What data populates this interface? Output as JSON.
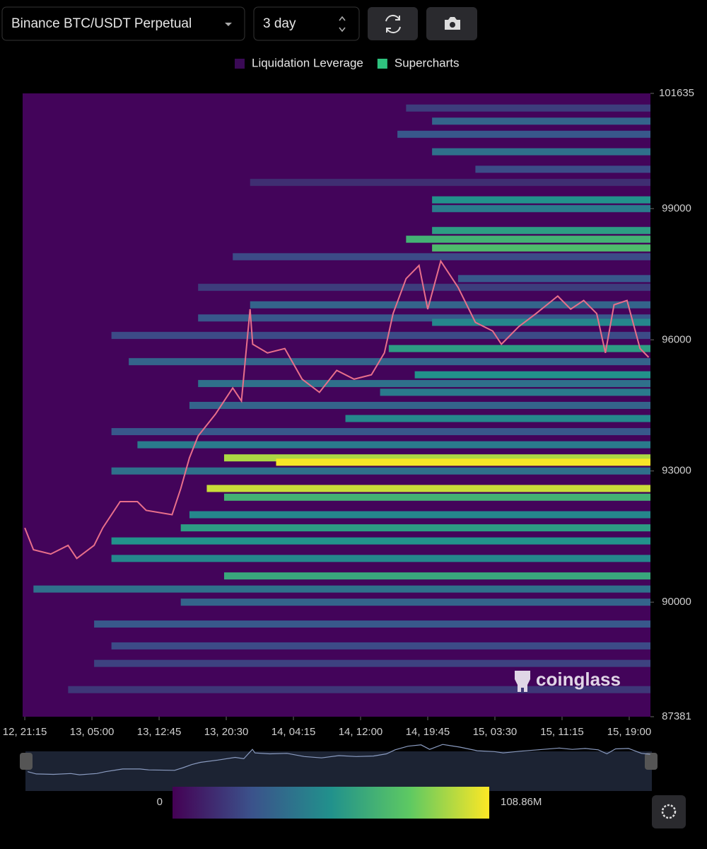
{
  "toolbar": {
    "symbol": "Binance BTC/USDT Perpetual",
    "range": "3 day"
  },
  "watermark": "coinglass",
  "chart_data": {
    "type": "heatmap",
    "series": [
      {
        "name": "Liquidation Leverage",
        "color": "#3a0a55"
      },
      {
        "name": "Supercharts",
        "color": "#2ec27e"
      }
    ],
    "background": "#43045a",
    "line_color": "#e86f8a",
    "ylim": [
      87381,
      101635
    ],
    "yticks": [
      87381,
      90000,
      93000,
      96000,
      99000,
      101635
    ],
    "xlim": [
      -0.25,
      72.2
    ],
    "xticks": [
      {
        "value": 0,
        "label": "12, 21:15"
      },
      {
        "value": 7.75,
        "label": "13, 05:00"
      },
      {
        "value": 15.5,
        "label": "13, 12:45"
      },
      {
        "value": 23.25,
        "label": "13, 20:30"
      },
      {
        "value": 31,
        "label": "14, 04:15"
      },
      {
        "value": 38.75,
        "label": "14, 12:00"
      },
      {
        "value": 46.5,
        "label": "14, 19:45"
      },
      {
        "value": 54.25,
        "label": "15, 03:30"
      },
      {
        "value": 62,
        "label": "15, 11:15"
      },
      {
        "value": 69.75,
        "label": "15, 19:00"
      }
    ],
    "price": {
      "x": [
        0,
        1,
        3,
        5,
        6,
        8,
        9,
        11,
        13,
        14,
        17,
        18,
        19,
        20,
        22,
        24,
        25,
        26,
        26.3,
        28,
        30,
        32,
        34,
        36,
        38,
        40,
        41.5,
        42.5,
        44,
        45.5,
        46.5,
        48,
        50,
        52,
        54,
        55,
        57,
        59,
        61.5,
        63,
        64.5,
        66,
        67,
        68,
        69.5,
        71,
        72
      ],
      "values": [
        91700,
        91200,
        91100,
        91300,
        91000,
        91300,
        91700,
        92300,
        92300,
        92100,
        92000,
        92600,
        93300,
        93800,
        94300,
        94900,
        94600,
        96700,
        95900,
        95700,
        95800,
        95100,
        94800,
        95300,
        95100,
        95200,
        95700,
        96600,
        97400,
        97700,
        96700,
        97800,
        97200,
        96400,
        96200,
        95900,
        96300,
        96600,
        97000,
        96700,
        96900,
        96600,
        95700,
        96800,
        96900,
        95800,
        95600
      ]
    },
    "bands": [
      {
        "price": 101300,
        "start": 44,
        "value": 20
      },
      {
        "price": 101000,
        "start": 47,
        "value": 35
      },
      {
        "price": 100700,
        "start": 43,
        "value": 30
      },
      {
        "price": 100300,
        "start": 47,
        "value": 40
      },
      {
        "price": 99900,
        "start": 52,
        "value": 25
      },
      {
        "price": 99600,
        "start": 26,
        "value": 15
      },
      {
        "price": 99200,
        "start": 47,
        "value": 55
      },
      {
        "price": 99000,
        "start": 47,
        "value": 45
      },
      {
        "price": 98500,
        "start": 47,
        "value": 60
      },
      {
        "price": 98300,
        "start": 44,
        "value": 70
      },
      {
        "price": 98100,
        "start": 47,
        "value": 75
      },
      {
        "price": 97900,
        "start": 24,
        "value": 25
      },
      {
        "price": 97400,
        "start": 50,
        "value": 30
      },
      {
        "price": 97200,
        "start": 20,
        "value": 20
      },
      {
        "price": 96800,
        "start": 26,
        "value": 35
      },
      {
        "price": 96500,
        "start": 20,
        "value": 30
      },
      {
        "price": 96400,
        "start": 47,
        "value": 50
      },
      {
        "price": 96100,
        "start": 10,
        "value": 25
      },
      {
        "price": 95800,
        "start": 42,
        "value": 60
      },
      {
        "price": 95500,
        "start": 12,
        "value": 35
      },
      {
        "price": 95200,
        "start": 45,
        "value": 55
      },
      {
        "price": 95000,
        "start": 20,
        "value": 40
      },
      {
        "price": 94800,
        "start": 41,
        "value": 45
      },
      {
        "price": 94500,
        "start": 19,
        "value": 35
      },
      {
        "price": 94200,
        "start": 37,
        "value": 50
      },
      {
        "price": 93900,
        "start": 10,
        "value": 30
      },
      {
        "price": 93600,
        "start": 13,
        "value": 45
      },
      {
        "price": 93300,
        "start": 23,
        "value": 95
      },
      {
        "price": 93200,
        "start": 29,
        "value": 108
      },
      {
        "price": 93000,
        "start": 10,
        "value": 40
      },
      {
        "price": 92600,
        "start": 21,
        "value": 100
      },
      {
        "price": 92400,
        "start": 23,
        "value": 70
      },
      {
        "price": 92000,
        "start": 19,
        "value": 50
      },
      {
        "price": 91700,
        "start": 18,
        "value": 60
      },
      {
        "price": 91400,
        "start": 10,
        "value": 55
      },
      {
        "price": 91000,
        "start": 10,
        "value": 50
      },
      {
        "price": 90600,
        "start": 23,
        "value": 65
      },
      {
        "price": 90300,
        "start": 1,
        "value": 40
      },
      {
        "price": 90000,
        "start": 18,
        "value": 35
      },
      {
        "price": 89500,
        "start": 8,
        "value": 30
      },
      {
        "price": 89000,
        "start": 10,
        "value": 25
      },
      {
        "price": 88600,
        "start": 8,
        "value": 22
      },
      {
        "price": 88000,
        "start": 5,
        "value": 18
      }
    ],
    "colorbar": {
      "min": 0,
      "max": {
        "value": 108.86,
        "label": "108.86M"
      }
    }
  }
}
